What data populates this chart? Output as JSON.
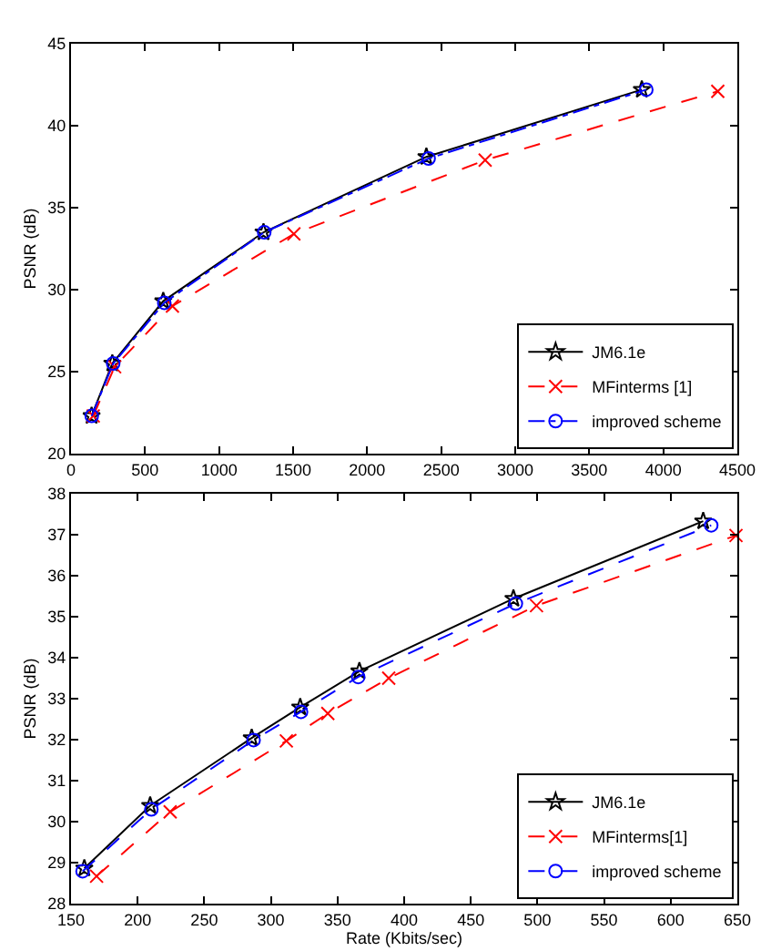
{
  "chart_data": [
    {
      "type": "line",
      "ylabel": "PSNR (dB)",
      "xlim": [
        0,
        4500
      ],
      "xticks": [
        0,
        500,
        1000,
        1500,
        2000,
        2500,
        3000,
        3500,
        4000,
        4500
      ],
      "ylim": [
        20,
        45
      ],
      "yticks": [
        20,
        25,
        30,
        35,
        40,
        45
      ],
      "legend": "bottom right",
      "series": [
        {
          "name": "JM6.1e",
          "color": "#000000",
          "marker": "star",
          "line_style": "solid",
          "x": [
            139,
            279,
            623,
            1300,
            2400,
            3855
          ],
          "values": [
            22.3,
            25.5,
            29.3,
            33.5,
            38.1,
            42.2
          ]
        },
        {
          "name": "MFinterms [1]",
          "color": "#ff0000",
          "marker": "cross",
          "line_style": "dashed",
          "x": [
            150,
            295,
            685,
            1505,
            2797,
            4368
          ],
          "values": [
            22.3,
            25.3,
            29.0,
            33.4,
            37.9,
            42.1
          ]
        },
        {
          "name": "improved scheme",
          "color": "#0000ff",
          "marker": "circle",
          "line_style": "dotted",
          "x": [
            140,
            285,
            630,
            1305,
            2415,
            3885
          ],
          "values": [
            22.3,
            25.5,
            29.2,
            33.5,
            38.0,
            42.2
          ]
        }
      ]
    },
    {
      "type": "line",
      "xlabel": "Rate (Kbits/sec)",
      "ylabel": "PSNR (dB)",
      "xlim": [
        150,
        650
      ],
      "xticks": [
        150,
        200,
        250,
        300,
        350,
        400,
        450,
        500,
        550,
        600,
        650
      ],
      "ylim": [
        28,
        38
      ],
      "yticks": [
        28,
        29,
        30,
        31,
        32,
        33,
        34,
        35,
        36,
        37,
        38
      ],
      "legend": "bottom right",
      "series": [
        {
          "name": "JM6.1e",
          "color": "#000000",
          "marker": "star",
          "line_style": "solid",
          "x": [
            160,
            209.4,
            285.6,
            322,
            366.4,
            482,
            624.4
          ],
          "values": [
            28.86,
            30.39,
            32.04,
            32.79,
            33.67,
            35.44,
            37.33
          ]
        },
        {
          "name": "MFinterms[1]",
          "color": "#ff0000",
          "marker": "cross",
          "line_style": "dashed",
          "x": [
            169.2,
            224.4,
            311.6,
            342.7,
            388.4,
            499.3,
            649
          ],
          "values": [
            28.67,
            30.24,
            31.97,
            32.64,
            33.5,
            35.27,
            36.98
          ]
        },
        {
          "name": "improved scheme",
          "color": "#0000ff",
          "marker": "circle",
          "line_style": "dashed",
          "x": [
            158.7,
            210.3,
            287,
            322.6,
            365.5,
            483.8,
            630.4
          ],
          "values": [
            28.79,
            30.3,
            31.99,
            32.68,
            33.53,
            35.32,
            37.23
          ]
        }
      ]
    }
  ]
}
